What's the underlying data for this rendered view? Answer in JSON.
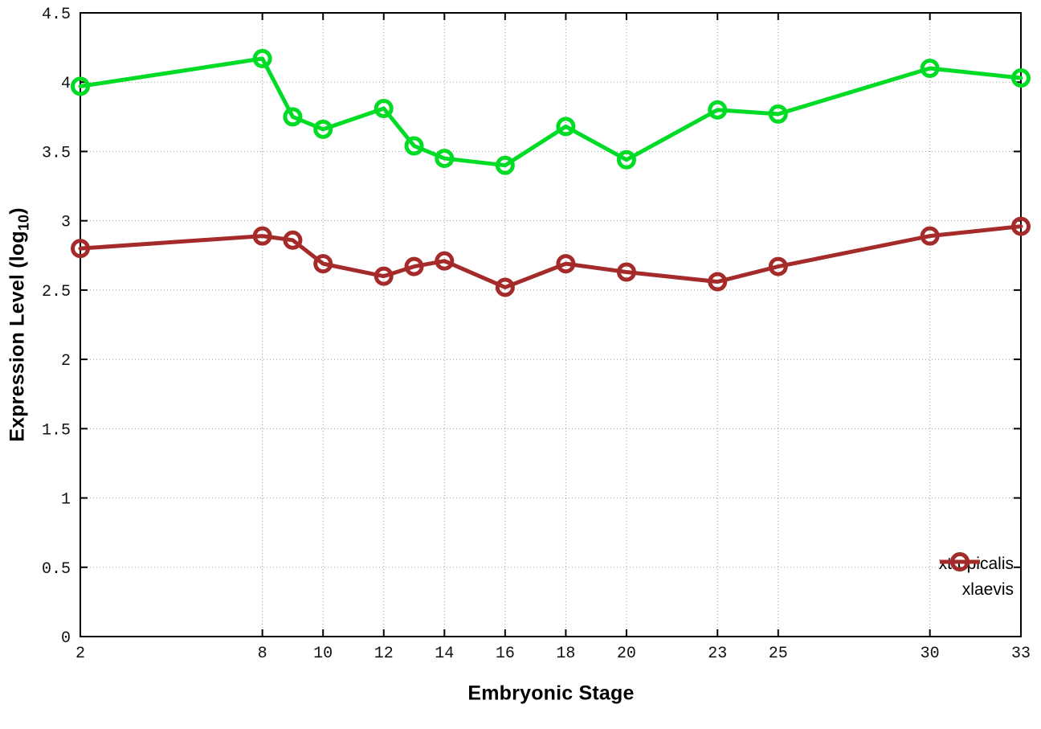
{
  "chart_data": {
    "type": "line",
    "title": "",
    "xlabel": "Embryonic Stage",
    "ylabel": "Expression Level (log10)",
    "ylabel_parts": {
      "prefix": "Expression Level (log",
      "sub": "10",
      "suffix": ")"
    },
    "x": [
      2,
      8,
      9,
      10,
      12,
      13,
      14,
      16,
      18,
      20,
      23,
      25,
      30,
      33
    ],
    "series": [
      {
        "name": "xtropicalis",
        "color": "#00dc26",
        "values": [
          3.97,
          4.17,
          3.75,
          3.66,
          3.81,
          3.54,
          3.45,
          3.4,
          3.68,
          3.44,
          3.8,
          3.77,
          4.1,
          4.03
        ]
      },
      {
        "name": "xlaevis",
        "color": "#a52a2a",
        "values": [
          2.8,
          2.89,
          2.86,
          2.69,
          2.6,
          2.67,
          2.71,
          2.52,
          2.69,
          2.63,
          2.56,
          2.67,
          2.89,
          2.96
        ]
      }
    ],
    "xlim": [
      2,
      33
    ],
    "ylim": [
      0,
      4.5
    ],
    "xticks": [
      2,
      8,
      10,
      12,
      14,
      16,
      18,
      20,
      23,
      25,
      30,
      33
    ],
    "yticks": [
      0,
      0.5,
      1,
      1.5,
      2,
      2.5,
      3,
      3.5,
      4,
      4.5
    ],
    "grid": true,
    "legend_position": "bottom-right",
    "marker": "open-circle",
    "axis_color": "#000000",
    "grid_color": "#9b9b9b",
    "background_color": "#ffffff"
  }
}
